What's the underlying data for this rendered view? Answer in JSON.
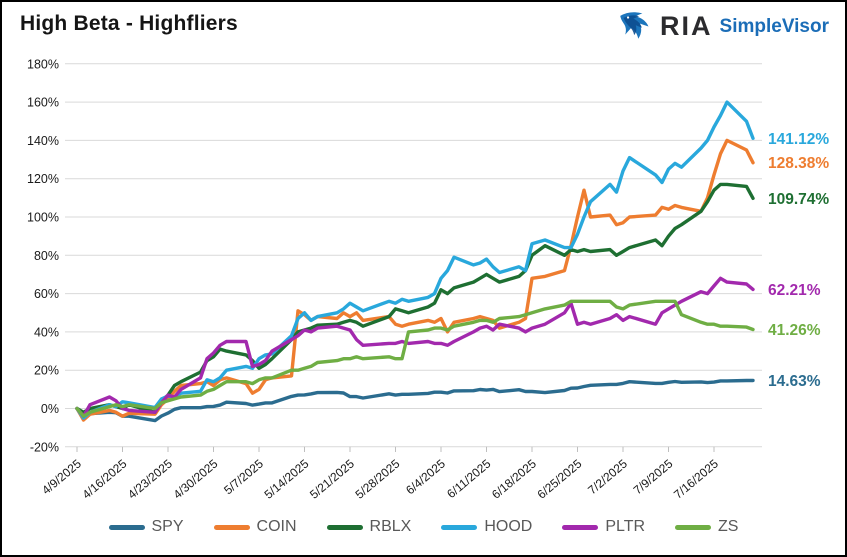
{
  "header": {
    "title": "High Beta - Highfliers",
    "logo": {
      "brand": "RIA",
      "product": "SimpleVisor"
    }
  },
  "chart_data": {
    "type": "line",
    "title": "High Beta - Highfliers",
    "grid": "horizontal",
    "legend_position": "bottom",
    "y_axis": {
      "min": -20,
      "max": 180,
      "step": 20,
      "format": "percent",
      "tick_labels": [
        "-20%",
        "0%",
        "20%",
        "40%",
        "60%",
        "80%",
        "100%",
        "120%",
        "140%",
        "160%",
        "180%"
      ]
    },
    "x_tick_labels": [
      "4/9/2025",
      "4/16/2025",
      "4/23/2025",
      "4/30/2025",
      "5/7/2025",
      "5/14/2025",
      "5/21/2025",
      "5/28/2025",
      "6/4/2025",
      "6/11/2025",
      "6/18/2025",
      "6/25/2025",
      "7/2/2025",
      "7/9/2025",
      "7/16/2025"
    ],
    "x": [
      "4/9",
      "4/10",
      "4/11",
      "4/14",
      "4/15",
      "4/16",
      "4/17",
      "4/21",
      "4/22",
      "4/23",
      "4/24",
      "4/25",
      "4/28",
      "4/29",
      "4/30",
      "5/1",
      "5/2",
      "5/5",
      "5/6",
      "5/7",
      "5/8",
      "5/9",
      "5/12",
      "5/13",
      "5/14",
      "5/15",
      "5/16",
      "5/19",
      "5/20",
      "5/21",
      "5/22",
      "5/23",
      "5/27",
      "5/28",
      "5/29",
      "5/30",
      "6/2",
      "6/3",
      "6/4",
      "6/5",
      "6/6",
      "6/9",
      "6/10",
      "6/11",
      "6/12",
      "6/13",
      "6/16",
      "6/17",
      "6/18",
      "6/20",
      "6/23",
      "6/24",
      "6/25",
      "6/26",
      "6/27",
      "6/30",
      "7/1",
      "7/2",
      "7/3",
      "7/7",
      "7/8",
      "7/9",
      "7/10",
      "7/11",
      "7/14",
      "7/15",
      "7/16",
      "7/17",
      "7/18",
      "7/21",
      "7/22"
    ],
    "series": [
      {
        "name": "SPY",
        "color": "#2b6c8f",
        "end_label": "14.63%",
        "values": [
          0,
          -4.4,
          -2.7,
          -2.0,
          -2.2,
          -4.0,
          -4.0,
          -6.3,
          -3.9,
          -2.4,
          -0.4,
          0.4,
          0.4,
          1.0,
          1.1,
          1.8,
          3.3,
          2.6,
          1.8,
          2.3,
          2.9,
          2.9,
          6.3,
          7.0,
          7.1,
          7.6,
          8.3,
          8.4,
          8.1,
          6.2,
          6.2,
          5.5,
          7.7,
          7.0,
          7.4,
          7.4,
          7.9,
          8.5,
          8.5,
          8.1,
          9.2,
          9.3,
          9.9,
          9.6,
          10.0,
          8.8,
          9.8,
          8.9,
          8.9,
          8.3,
          9.4,
          10.6,
          10.7,
          11.5,
          12.1,
          12.6,
          12.6,
          13.1,
          14.0,
          13.1,
          13.1,
          13.7,
          14.1,
          13.7,
          13.9,
          13.5,
          13.8,
          14.4,
          14.4,
          14.6,
          14.63
        ]
      },
      {
        "name": "COIN",
        "color": "#ee7d30",
        "end_label": "128.38%",
        "values": [
          0,
          -6,
          -3,
          -1,
          -2,
          -4,
          -2.5,
          -3,
          2,
          5,
          9,
          12,
          13,
          14,
          12,
          15,
          16,
          13,
          8,
          10,
          15,
          16,
          17,
          51,
          49,
          46,
          48,
          47,
          50,
          48,
          50,
          46,
          48,
          44,
          43,
          44,
          46,
          45,
          47,
          40,
          45,
          47,
          48,
          47,
          46,
          42,
          45,
          47,
          68,
          69,
          72,
          85,
          100,
          114,
          100,
          101,
          96,
          97,
          100,
          101,
          105,
          104,
          106,
          105,
          103,
          110,
          122,
          133,
          140,
          135,
          128.38
        ]
      },
      {
        "name": "RBLX",
        "color": "#1e6f32",
        "end_label": "109.74%",
        "values": [
          0,
          -2,
          0,
          2,
          1,
          0,
          2,
          -2,
          4,
          7,
          12,
          14,
          19,
          25,
          27,
          31,
          30,
          28,
          25,
          21,
          23,
          26,
          36,
          40,
          41,
          42,
          43.5,
          44,
          45,
          46,
          45,
          43,
          48,
          52,
          51,
          50,
          53,
          55,
          62,
          60,
          63,
          66,
          68,
          70,
          68,
          66,
          69,
          72,
          80,
          85,
          80,
          83,
          82,
          83,
          82,
          83,
          80,
          82,
          84,
          88,
          85,
          90,
          94,
          96,
          103,
          108,
          114,
          117,
          117,
          116,
          109.74
        ]
      },
      {
        "name": "HOOD",
        "color": "#29a8dc",
        "end_label": "141.12%",
        "values": [
          0,
          -5,
          -2,
          2,
          1,
          3.5,
          3,
          0.5,
          5,
          6.5,
          6,
          8,
          9,
          15,
          14,
          16,
          20,
          22,
          21,
          26,
          28,
          28.5,
          38,
          47,
          50,
          46,
          48,
          50,
          52,
          55,
          53,
          51,
          56,
          55,
          57,
          56,
          58,
          60,
          68,
          72,
          79,
          75,
          76,
          78,
          74,
          71,
          74,
          72,
          86,
          88,
          84,
          84,
          91,
          100,
          108,
          117,
          113,
          124,
          131,
          122,
          118,
          125,
          128,
          126,
          136,
          140,
          147,
          153,
          160,
          150,
          141.12
        ]
      },
      {
        "name": "PLTR",
        "color": "#a229ad",
        "end_label": "62.21%",
        "values": [
          0,
          -4,
          2,
          6,
          4,
          0,
          -1,
          -2,
          3,
          7,
          6,
          10,
          16,
          26,
          29,
          33,
          35,
          35,
          22,
          23,
          25,
          30,
          36,
          38,
          41,
          40,
          42,
          43,
          42,
          41,
          36,
          33,
          34,
          34,
          35,
          34,
          35,
          34,
          34,
          33,
          35,
          40,
          42,
          43,
          41,
          44,
          42,
          40,
          42,
          44,
          50,
          55,
          44,
          45,
          44,
          47,
          49,
          46,
          48,
          44,
          50,
          52,
          54,
          56,
          61,
          60,
          64,
          68,
          66,
          65,
          62.21
        ]
      },
      {
        "name": "ZS",
        "color": "#6fae44",
        "end_label": "41.26%",
        "values": [
          0,
          -4,
          -2,
          1,
          2,
          1,
          2,
          0,
          3,
          4,
          5,
          6,
          7,
          9,
          10,
          12,
          14,
          14,
          13,
          15,
          16,
          16,
          20,
          20,
          21,
          22,
          24,
          25,
          26,
          26,
          27,
          26,
          27,
          26,
          26,
          40,
          41,
          42,
          42,
          41,
          43,
          45,
          46,
          46,
          45,
          47,
          48,
          49,
          50,
          52,
          54,
          56,
          56,
          56,
          56,
          56,
          53,
          52,
          54,
          56,
          56,
          56,
          56,
          49,
          45,
          44,
          44,
          43,
          43,
          42.5,
          41.26
        ]
      }
    ]
  }
}
